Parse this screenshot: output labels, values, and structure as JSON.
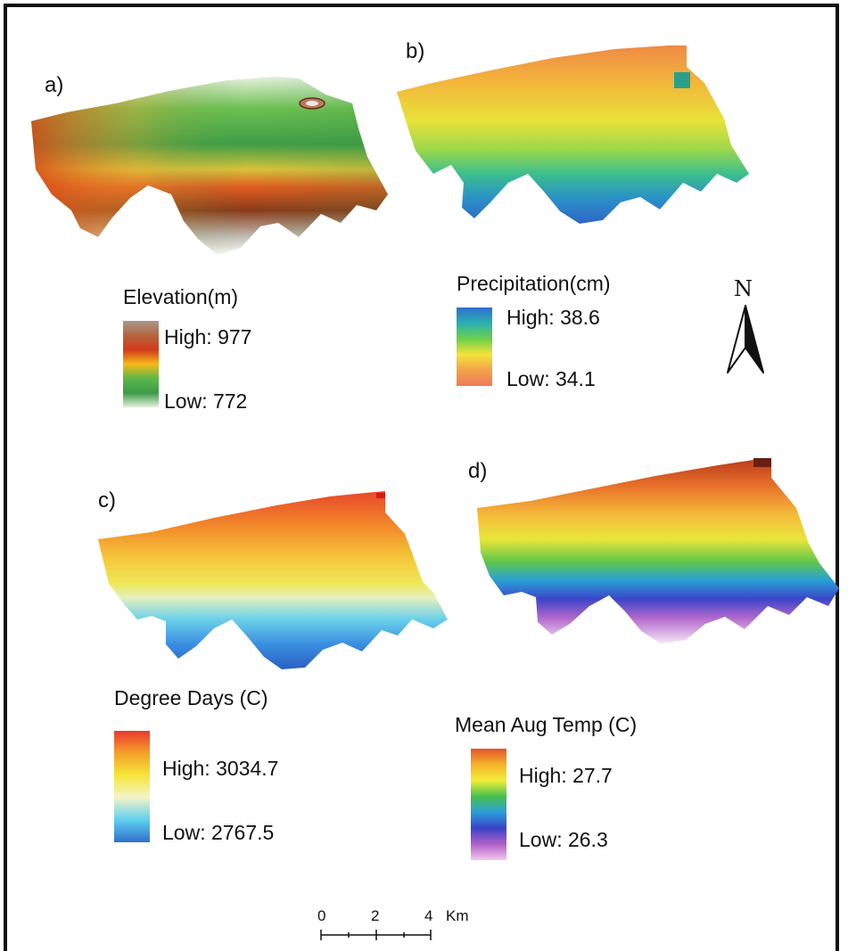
{
  "panels": {
    "a": {
      "label": "a)",
      "legend_title": "Elevation(m)",
      "high": "High: 977",
      "low": "Low: 772",
      "ramp_colors": [
        "#a89890",
        "#b4663e",
        "#d23a1a",
        "#f5b818",
        "#5bb84a",
        "#3e9a48",
        "#e6f1dc"
      ]
    },
    "b": {
      "label": "b)",
      "legend_title": "Precipitation(cm)",
      "high": "High: 38.6",
      "low": "Low: 34.1",
      "ramp_colors": [
        "#2f6fd0",
        "#2ab0b0",
        "#6cd04a",
        "#f5e23a",
        "#f2a24a",
        "#ee7a5a"
      ]
    },
    "c": {
      "label": "c)",
      "legend_title": "Degree Days (C)",
      "high": "High: 3034.7",
      "low": "Low: 2767.5",
      "ramp_colors": [
        "#e93a2e",
        "#f5a02a",
        "#f5e63a",
        "#f3f3c8",
        "#5fd0ef",
        "#2f6fcc"
      ]
    },
    "d": {
      "label": "d)",
      "legend_title": "Mean Aug Temp (C)",
      "high": "High: 27.7",
      "low": "Low: 26.3",
      "ramp_colors": [
        "#e2542a",
        "#f5b22a",
        "#f2ee3a",
        "#46c04e",
        "#2a9ed8",
        "#3a42c8",
        "#b060c8",
        "#f2c8ee"
      ]
    }
  },
  "north_arrow": {
    "letter": "N"
  },
  "scale_bar": {
    "labels": [
      "0",
      "2",
      "4"
    ],
    "unit": "Km"
  },
  "colors": {
    "frame": "#111111"
  }
}
